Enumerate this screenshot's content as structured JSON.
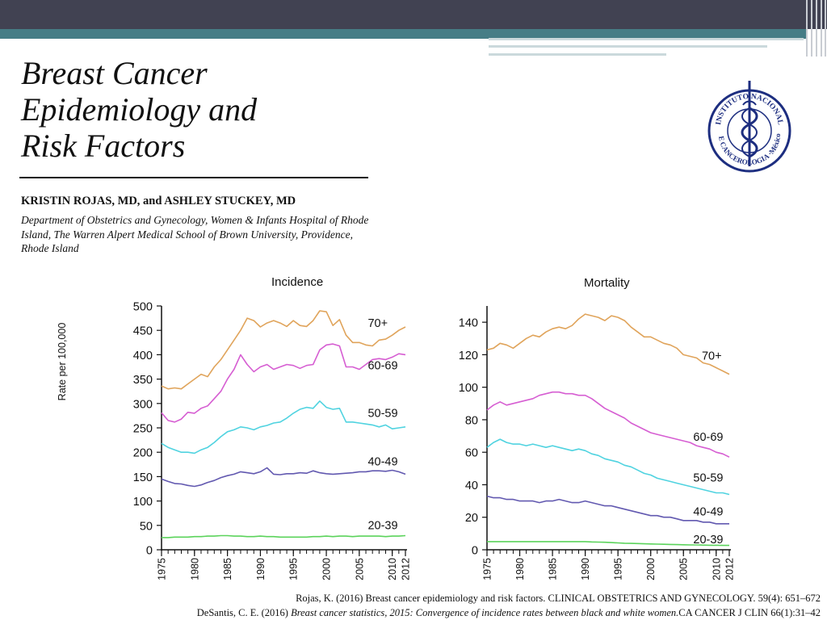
{
  "slide": {
    "title_lines": [
      "Breast Cancer",
      "Epidemiology and",
      "Risk Factors"
    ],
    "authors": "KRISTIN ROJAS, MD, and ASHLEY STUCKEY, MD",
    "affiliation": "Department of Obstetrics and Gynecology, Women & Infants Hospital of Rhode Island, The Warren Alpert Medical School of Brown University, Providence, Rhode Island",
    "seal": {
      "text_top": "INSTITUTO NACIONAL",
      "text_bottom": "DE CANCEROLOGIA ·México·",
      "color": "#1d2e80"
    }
  },
  "references": {
    "ref1": "Rojas, K. (2016) Breast cancer epidemiology and risk factors. CLINICAL OBSTETRICS AND GYNECOLOGY. 59(4): 651–672",
    "ref2_author": "DeSantis, C. E. (2016) ",
    "ref2_title": "Breast cancer statistics, 2015: Convergence of incidence rates between black and white women.",
    "ref2_journal": "CA CANCER J CLIN 66(1):31–42"
  },
  "chart_data": [
    {
      "type": "line",
      "title": "Incidence",
      "ylabel": "Rate per 100,000",
      "xlabel": "",
      "ylim": [
        0,
        500
      ],
      "yticks": [
        0,
        50,
        100,
        150,
        200,
        250,
        300,
        350,
        400,
        450,
        500
      ],
      "xlim": [
        1975,
        2012
      ],
      "xticks": [
        1975,
        1980,
        1985,
        1990,
        1995,
        2000,
        2005,
        2010,
        2012
      ],
      "grid": false,
      "series": [
        {
          "name": "70+",
          "label_x": 2006.3,
          "label_y": 457,
          "color": "#e0a45b",
          "x": [
            1975,
            1976,
            1977,
            1978,
            1979,
            1980,
            1981,
            1982,
            1983,
            1984,
            1985,
            1986,
            1987,
            1988,
            1989,
            1990,
            1991,
            1992,
            1993,
            1994,
            1995,
            1996,
            1997,
            1998,
            1999,
            2000,
            2001,
            2002,
            2003,
            2004,
            2005,
            2006,
            2007,
            2008,
            2009,
            2010,
            2011,
            2012
          ],
          "values": [
            336,
            330,
            332,
            330,
            340,
            350,
            360,
            355,
            375,
            390,
            410,
            430,
            450,
            475,
            470,
            457,
            465,
            470,
            465,
            458,
            470,
            460,
            458,
            470,
            490,
            488,
            460,
            472,
            440,
            425,
            425,
            420,
            418,
            430,
            432,
            440,
            450,
            457
          ]
        },
        {
          "name": "60-69",
          "label_x": 2006.3,
          "label_y": 370,
          "color": "#d65ed2",
          "x": [
            1975,
            1976,
            1977,
            1978,
            1979,
            1980,
            1981,
            1982,
            1983,
            1984,
            1985,
            1986,
            1987,
            1988,
            1989,
            1990,
            1991,
            1992,
            1993,
            1994,
            1995,
            1996,
            1997,
            1998,
            1999,
            2000,
            2001,
            2002,
            2003,
            2004,
            2005,
            2006,
            2007,
            2008,
            2009,
            2010,
            2011,
            2012
          ],
          "values": [
            281,
            265,
            262,
            268,
            282,
            280,
            290,
            295,
            310,
            325,
            350,
            370,
            400,
            380,
            365,
            375,
            380,
            370,
            375,
            380,
            378,
            372,
            378,
            380,
            410,
            420,
            422,
            418,
            375,
            375,
            370,
            380,
            390,
            392,
            390,
            395,
            402,
            400
          ]
        },
        {
          "name": "50-59",
          "label_x": 2006.3,
          "label_y": 272,
          "color": "#50d3e0",
          "x": [
            1975,
            1976,
            1977,
            1978,
            1979,
            1980,
            1981,
            1982,
            1983,
            1984,
            1985,
            1986,
            1987,
            1988,
            1989,
            1990,
            1991,
            1992,
            1993,
            1994,
            1995,
            1996,
            1997,
            1998,
            1999,
            2000,
            2001,
            2002,
            2003,
            2004,
            2005,
            2006,
            2007,
            2008,
            2009,
            2010,
            2011,
            2012
          ],
          "values": [
            218,
            210,
            205,
            200,
            200,
            198,
            205,
            210,
            220,
            232,
            242,
            246,
            252,
            250,
            246,
            252,
            255,
            260,
            262,
            270,
            280,
            288,
            292,
            290,
            305,
            292,
            288,
            290,
            262,
            262,
            260,
            258,
            256,
            252,
            256,
            248,
            250,
            252
          ]
        },
        {
          "name": "40-49",
          "label_x": 2006.3,
          "label_y": 173,
          "color": "#6259b0",
          "x": [
            1975,
            1976,
            1977,
            1978,
            1979,
            1980,
            1981,
            1982,
            1983,
            1984,
            1985,
            1986,
            1987,
            1988,
            1989,
            1990,
            1991,
            1992,
            1993,
            1994,
            1995,
            1996,
            1997,
            1998,
            1999,
            2000,
            2001,
            2002,
            2003,
            2004,
            2005,
            2006,
            2007,
            2008,
            2009,
            2010,
            2011,
            2012
          ],
          "values": [
            145,
            140,
            136,
            135,
            132,
            130,
            133,
            138,
            142,
            148,
            152,
            155,
            160,
            158,
            156,
            160,
            168,
            155,
            154,
            156,
            156,
            158,
            157,
            162,
            158,
            156,
            155,
            156,
            157,
            158,
            160,
            160,
            162,
            162,
            161,
            163,
            160,
            155
          ]
        },
        {
          "name": "20-39",
          "label_x": 2006.3,
          "label_y": 42,
          "color": "#5bd35b",
          "x": [
            1975,
            1976,
            1977,
            1978,
            1979,
            1980,
            1981,
            1982,
            1983,
            1984,
            1985,
            1986,
            1987,
            1988,
            1989,
            1990,
            1991,
            1992,
            1993,
            1994,
            1995,
            1996,
            1997,
            1998,
            1999,
            2000,
            2001,
            2002,
            2003,
            2004,
            2005,
            2006,
            2007,
            2008,
            2009,
            2010,
            2011,
            2012
          ],
          "values": [
            25,
            25,
            26,
            26,
            26,
            27,
            27,
            28,
            28,
            29,
            29,
            28,
            28,
            27,
            27,
            28,
            27,
            27,
            26,
            26,
            26,
            26,
            26,
            27,
            27,
            28,
            27,
            28,
            28,
            27,
            28,
            28,
            28,
            28,
            27,
            28,
            28,
            29
          ]
        }
      ]
    },
    {
      "type": "line",
      "title": "Mortality",
      "ylabel": "",
      "xlabel": "",
      "ylim": [
        0,
        150
      ],
      "yticks": [
        0,
        20,
        40,
        60,
        80,
        100,
        120,
        140
      ],
      "xlim": [
        1975,
        2012
      ],
      "xticks": [
        1975,
        1980,
        1985,
        1990,
        1995,
        2000,
        2005,
        2010,
        2012
      ],
      "grid": false,
      "series": [
        {
          "name": "70+",
          "label_x": 2007.8,
          "label_y": 117,
          "color": "#e0a45b",
          "x": [
            1975,
            1976,
            1977,
            1978,
            1979,
            1980,
            1981,
            1982,
            1983,
            1984,
            1985,
            1986,
            1987,
            1988,
            1989,
            1990,
            1991,
            1992,
            1993,
            1994,
            1995,
            1996,
            1997,
            1998,
            1999,
            2000,
            2001,
            2002,
            2003,
            2004,
            2005,
            2006,
            2007,
            2008,
            2009,
            2010,
            2011,
            2012
          ],
          "values": [
            123,
            124,
            127,
            126,
            124,
            127,
            130,
            132,
            131,
            134,
            136,
            137,
            136,
            138,
            142,
            145,
            144,
            143,
            141,
            144,
            143,
            141,
            137,
            134,
            131,
            131,
            129,
            127,
            126,
            124,
            120,
            119,
            118,
            115,
            114,
            112,
            110,
            108
          ]
        },
        {
          "name": "60-69",
          "label_x": 2006.5,
          "label_y": 67,
          "color": "#d65ed2",
          "x": [
            1975,
            1976,
            1977,
            1978,
            1979,
            1980,
            1981,
            1982,
            1983,
            1984,
            1985,
            1986,
            1987,
            1988,
            1989,
            1990,
            1991,
            1992,
            1993,
            1994,
            1995,
            1996,
            1997,
            1998,
            1999,
            2000,
            2001,
            2002,
            2003,
            2004,
            2005,
            2006,
            2007,
            2008,
            2009,
            2010,
            2011,
            2012
          ],
          "values": [
            86,
            89,
            91,
            89,
            90,
            91,
            92,
            93,
            95,
            96,
            97,
            97,
            96,
            96,
            95,
            95,
            93,
            90,
            87,
            85,
            83,
            81,
            78,
            76,
            74,
            72,
            71,
            70,
            69,
            68,
            67,
            66,
            64,
            63,
            62,
            60,
            59,
            57
          ]
        },
        {
          "name": "50-59",
          "label_x": 2006.5,
          "label_y": 42,
          "color": "#50d3e0",
          "x": [
            1975,
            1976,
            1977,
            1978,
            1979,
            1980,
            1981,
            1982,
            1983,
            1984,
            1985,
            1986,
            1987,
            1988,
            1989,
            1990,
            1991,
            1992,
            1993,
            1994,
            1995,
            1996,
            1997,
            1998,
            1999,
            2000,
            2001,
            2002,
            2003,
            2004,
            2005,
            2006,
            2007,
            2008,
            2009,
            2010,
            2011,
            2012
          ],
          "values": [
            63,
            66,
            68,
            66,
            65,
            65,
            64,
            65,
            64,
            63,
            64,
            63,
            62,
            61,
            62,
            61,
            59,
            58,
            56,
            55,
            54,
            52,
            51,
            49,
            47,
            46,
            44,
            43,
            42,
            41,
            40,
            39,
            38,
            37,
            36,
            35,
            35,
            34
          ]
        },
        {
          "name": "40-49",
          "label_x": 2006.5,
          "label_y": 21,
          "color": "#6259b0",
          "x": [
            1975,
            1976,
            1977,
            1978,
            1979,
            1980,
            1981,
            1982,
            1983,
            1984,
            1985,
            1986,
            1987,
            1988,
            1989,
            1990,
            1991,
            1992,
            1993,
            1994,
            1995,
            1996,
            1997,
            1998,
            1999,
            2000,
            2001,
            2002,
            2003,
            2004,
            2005,
            2006,
            2007,
            2008,
            2009,
            2010,
            2011,
            2012
          ],
          "values": [
            33,
            32,
            32,
            31,
            31,
            30,
            30,
            30,
            29,
            30,
            30,
            31,
            30,
            29,
            29,
            30,
            29,
            28,
            27,
            27,
            26,
            25,
            24,
            23,
            22,
            21,
            21,
            20,
            20,
            19,
            18,
            18,
            18,
            17,
            17,
            16,
            16,
            16
          ]
        },
        {
          "name": "20-39",
          "label_x": 2006.5,
          "label_y": 4,
          "color": "#5bd35b",
          "x": [
            1975,
            1976,
            1977,
            1978,
            1979,
            1980,
            1981,
            1982,
            1983,
            1984,
            1985,
            1986,
            1987,
            1988,
            1989,
            1990,
            1991,
            1992,
            1993,
            1994,
            1995,
            1996,
            1997,
            1998,
            1999,
            2000,
            2001,
            2002,
            2003,
            2004,
            2005,
            2006,
            2007,
            2008,
            2009,
            2010,
            2011,
            2012
          ],
          "values": [
            5,
            5,
            5,
            5,
            5,
            5,
            5,
            5,
            5,
            5,
            5,
            5,
            5,
            5,
            5,
            5,
            4.8,
            4.7,
            4.6,
            4.4,
            4.2,
            4.0,
            3.9,
            3.8,
            3.7,
            3.6,
            3.5,
            3.4,
            3.3,
            3.2,
            3.1,
            3.0,
            3.0,
            2.9,
            2.8,
            2.8,
            2.7,
            2.7
          ]
        }
      ]
    }
  ]
}
